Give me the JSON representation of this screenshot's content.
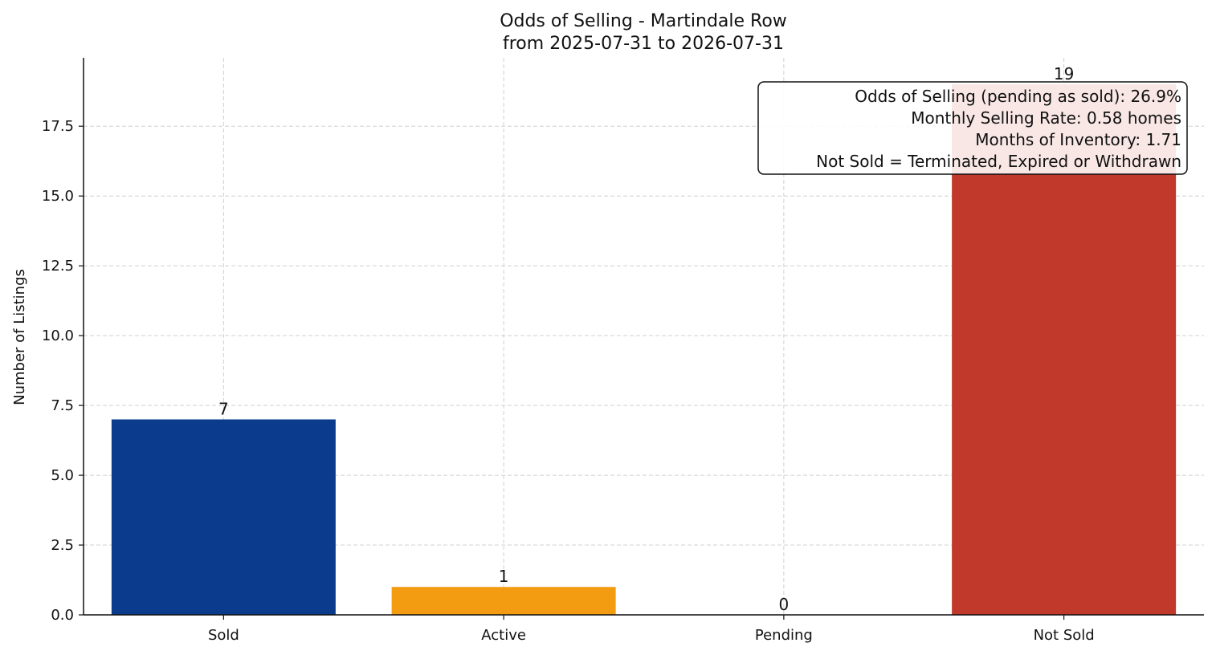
{
  "chart_data": {
    "type": "bar",
    "title": "Odds of Selling - Martindale Row",
    "subtitle": "from 2025-07-31 to 2026-07-31",
    "xlabel": "",
    "ylabel": "Number of Listings",
    "categories": [
      "Sold",
      "Active",
      "Pending",
      "Not Sold"
    ],
    "values": [
      7,
      1,
      0,
      19
    ],
    "value_labels": [
      "7",
      "1",
      "0",
      "19"
    ],
    "colors": [
      "#0b3b8c",
      "#f39c12",
      "#7f8c8d",
      "#c0392b"
    ],
    "ylim": [
      0,
      19.95
    ],
    "yticks": [
      0,
      2.5,
      5,
      7.5,
      10,
      12.5,
      15,
      17.5
    ],
    "ytick_labels": [
      "0.0",
      "2.5",
      "5.0",
      "7.5",
      "10.0",
      "12.5",
      "15.0",
      "17.5"
    ],
    "grid": true,
    "annotation_lines": [
      "Odds of Selling (pending as sold): 26.9%",
      "Monthly Selling Rate: 0.58 homes",
      "Months of Inventory: 1.71",
      "Not Sold = Terminated, Expired or Withdrawn"
    ]
  }
}
